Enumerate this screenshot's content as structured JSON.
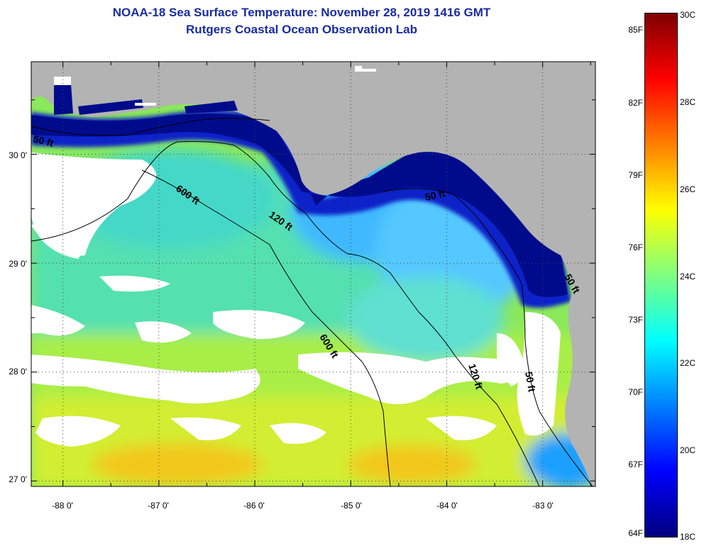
{
  "title": "NOAA-18 Sea Surface Temperature:  November 28, 2019 1416 GMT",
  "subtitle": "Rutgers Coastal Ocean Observation Lab",
  "map": {
    "lon_range": [
      -88.33,
      -82.45
    ],
    "lat_range": [
      26.95,
      30.85
    ],
    "lat_ticks": [
      {
        "value": 30,
        "label": "30 0'"
      },
      {
        "value": 29,
        "label": "29 0'"
      },
      {
        "value": 28,
        "label": "28 0'"
      },
      {
        "value": 27,
        "label": "27 0'"
      }
    ],
    "lon_ticks": [
      {
        "value": -88,
        "label": "-88 0'"
      },
      {
        "value": -87,
        "label": "-87 0'"
      },
      {
        "value": -86,
        "label": "-86 0'"
      },
      {
        "value": -85,
        "label": "-85 0'"
      },
      {
        "value": -84,
        "label": "-84 0'"
      },
      {
        "value": -83,
        "label": "-83 0'"
      }
    ],
    "grid": "dotted",
    "land_color": "#b3b3b3",
    "cloud_color": "#ffffff",
    "contour_labels": [
      {
        "text": "50 ft"
      },
      {
        "text": "600 ft"
      },
      {
        "text": "120 ft"
      },
      {
        "text": "50 ft"
      },
      {
        "text": "600 ft"
      },
      {
        "text": "120 ft"
      },
      {
        "text": "50 ft"
      },
      {
        "text": "50 ft"
      }
    ]
  },
  "colorbar": {
    "range_c": [
      18,
      30
    ],
    "fahrenheit_labels": [
      "85F",
      "82F",
      "79F",
      "76F",
      "73F",
      "70F",
      "67F",
      "64F"
    ],
    "celsius_labels": [
      "30C",
      "28C",
      "26C",
      "24C",
      "22C",
      "20C",
      "18C"
    ],
    "colors": [
      "#00007f",
      "#0000ff",
      "#007fff",
      "#00ffff",
      "#7fff7f",
      "#ffff00",
      "#ff7f00",
      "#ff0000",
      "#7f0000"
    ]
  }
}
